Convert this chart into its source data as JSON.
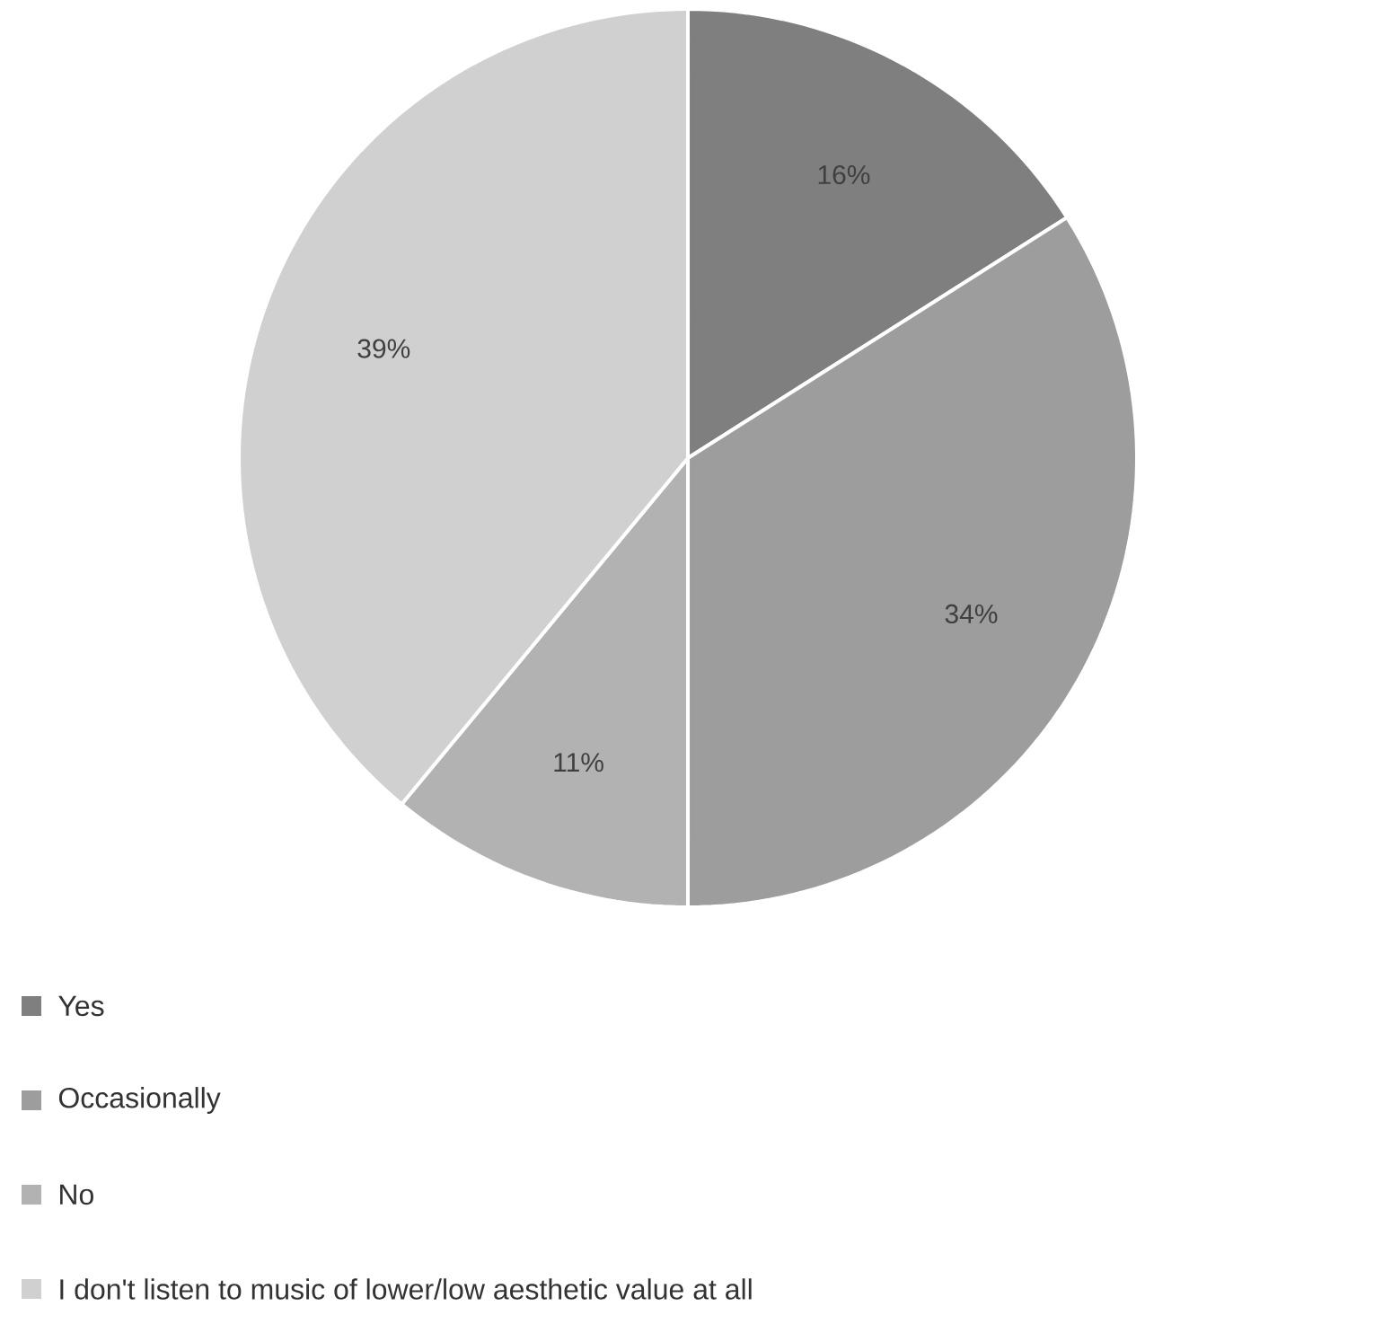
{
  "chart_data": {
    "type": "pie",
    "categories": [
      "Yes",
      "Occasionally",
      "No",
      "I don't listen to music of lower/low aesthetic value at all"
    ],
    "values": [
      16,
      34,
      11,
      39
    ],
    "value_labels": [
      "16%",
      "34%",
      "11%",
      "39%"
    ],
    "colors": [
      "#7f7f7f",
      "#9d9d9d",
      "#b2b2b2",
      "#d0d0d0"
    ],
    "legend": "bottom"
  }
}
